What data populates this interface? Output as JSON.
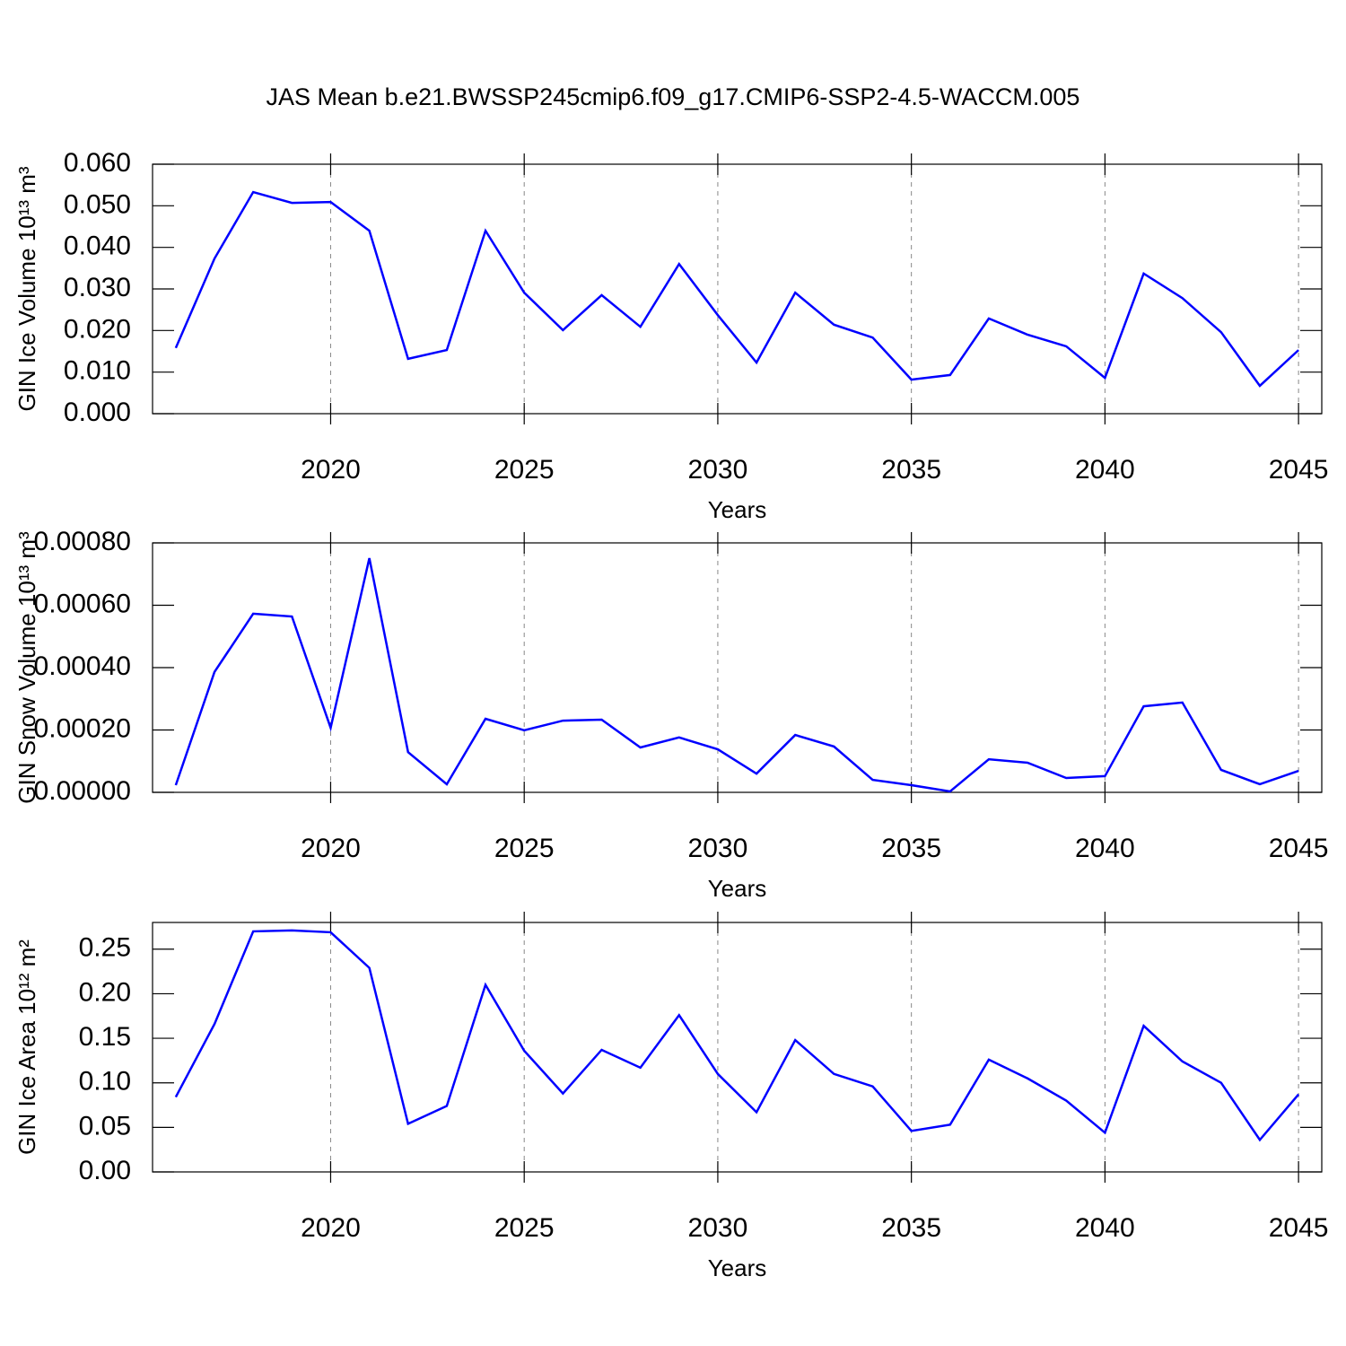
{
  "chart_data": [
    {
      "type": "line",
      "title": "JAS Mean b.e21.BWSSP245cmip6.f09_g17.CMIP6-SSP2-4.5-WACCM.005",
      "ylabel": "GIN Ice Volume 10¹³ m³",
      "xlabel": "Years",
      "color": "#0000ff",
      "grid": "x",
      "x": [
        2016,
        2017,
        2018,
        2019,
        2020,
        2021,
        2022,
        2023,
        2024,
        2025,
        2026,
        2027,
        2028,
        2029,
        2030,
        2031,
        2032,
        2033,
        2034,
        2035,
        2036,
        2037,
        2038,
        2039,
        2040,
        2041,
        2042,
        2043,
        2044,
        2045
      ],
      "values": [
        0.0158,
        0.0373,
        0.0533,
        0.0507,
        0.0509,
        0.044,
        0.0132,
        0.0153,
        0.044,
        0.0291,
        0.0201,
        0.0285,
        0.0209,
        0.036,
        0.0237,
        0.0123,
        0.0291,
        0.0214,
        0.0183,
        0.0082,
        0.0093,
        0.0229,
        0.019,
        0.0162,
        0.0086,
        0.0337,
        0.0278,
        0.0196,
        0.0067,
        0.0153
      ],
      "xlim": [
        2015.4,
        2045.6
      ],
      "xticks": [
        2020,
        2025,
        2030,
        2035,
        2040,
        2045
      ],
      "ylim": [
        0,
        0.06
      ],
      "yticks": [
        {
          "value": 0,
          "label": "0.000"
        },
        {
          "value": 0.01,
          "label": "0.010"
        },
        {
          "value": 0.02,
          "label": "0.020"
        },
        {
          "value": 0.03,
          "label": "0.030"
        },
        {
          "value": 0.04,
          "label": "0.040"
        },
        {
          "value": 0.05,
          "label": "0.050"
        },
        {
          "value": 0.06,
          "label": "0.060"
        }
      ]
    },
    {
      "type": "line",
      "ylabel": "GIN Snow Volume 10¹³ m³",
      "xlabel": "Years",
      "color": "#0000ff",
      "grid": "x",
      "x": [
        2016,
        2017,
        2018,
        2019,
        2020,
        2021,
        2022,
        2023,
        2024,
        2025,
        2026,
        2027,
        2028,
        2029,
        2030,
        2031,
        2032,
        2033,
        2034,
        2035,
        2036,
        2037,
        2038,
        2039,
        2040,
        2041,
        2042,
        2043,
        2044,
        2045
      ],
      "values": [
        2.3e-05,
        0.000386,
        0.000573,
        0.000564,
        0.000207,
        0.000751,
        0.000129,
        2.6e-05,
        0.000236,
        0.000199,
        0.00023,
        0.000233,
        0.000144,
        0.000176,
        0.000138,
        6e-05,
        0.000184,
        0.000147,
        4e-05,
        2.3e-05,
        3e-06,
        0.000106,
        9.5e-05,
        4.6e-05,
        5.2e-05,
        0.000276,
        0.000288,
        7.2e-05,
        2.6e-05,
        6.9e-05
      ],
      "xlim": [
        2015.4,
        2045.6
      ],
      "xticks": [
        2020,
        2025,
        2030,
        2035,
        2040,
        2045
      ],
      "ylim": [
        0,
        0.0008
      ],
      "yticks": [
        {
          "value": 0,
          "label": "0.00000"
        },
        {
          "value": 0.0002,
          "label": "0.00020"
        },
        {
          "value": 0.0004,
          "label": "0.00040"
        },
        {
          "value": 0.0006,
          "label": "0.00060"
        },
        {
          "value": 0.0008,
          "label": "0.00080"
        }
      ]
    },
    {
      "type": "line",
      "ylabel": "GIN Ice Area 10¹² m²",
      "xlabel": "Years",
      "color": "#0000ff",
      "grid": "x",
      "x": [
        2016,
        2017,
        2018,
        2019,
        2020,
        2021,
        2022,
        2023,
        2024,
        2025,
        2026,
        2027,
        2028,
        2029,
        2030,
        2031,
        2032,
        2033,
        2034,
        2035,
        2036,
        2037,
        2038,
        2039,
        2040,
        2041,
        2042,
        2043,
        2044,
        2045
      ],
      "values": [
        0.084,
        0.166,
        0.27,
        0.271,
        0.269,
        0.229,
        0.054,
        0.074,
        0.21,
        0.136,
        0.088,
        0.137,
        0.117,
        0.176,
        0.11,
        0.067,
        0.148,
        0.11,
        0.096,
        0.046,
        0.053,
        0.126,
        0.105,
        0.08,
        0.044,
        0.164,
        0.124,
        0.1,
        0.036,
        0.087
      ],
      "xlim": [
        2015.4,
        2045.6
      ],
      "xticks": [
        2020,
        2025,
        2030,
        2035,
        2040,
        2045
      ],
      "ylim": [
        0,
        0.28
      ],
      "yticks": [
        {
          "value": 0,
          "label": "0.00"
        },
        {
          "value": 0.05,
          "label": "0.05"
        },
        {
          "value": 0.1,
          "label": "0.10"
        },
        {
          "value": 0.15,
          "label": "0.15"
        },
        {
          "value": 0.2,
          "label": "0.20"
        },
        {
          "value": 0.25,
          "label": "0.25"
        }
      ]
    }
  ]
}
